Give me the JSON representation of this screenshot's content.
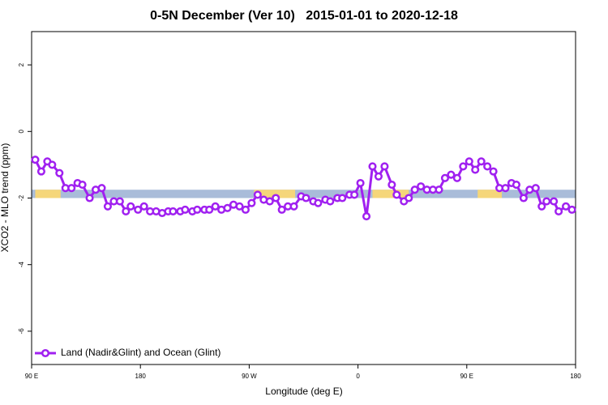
{
  "chart_data": {
    "type": "line",
    "title": "0-5N December (Ver 10)   2015-01-01 to 2020-12-18",
    "xlabel": "Longitude (deg E)",
    "ylabel": "XCO2 - MLO trend (ppm)",
    "xlim": [
      90,
      540
    ],
    "xticks": [
      {
        "value": 90,
        "label": "90 E"
      },
      180,
      {
        "value": 270,
        "label": "90 W"
      },
      {
        "value": 360,
        "label": "0"
      },
      {
        "value": 450,
        "label": "90 E"
      },
      {
        "value": 540,
        "label": "180"
      }
    ],
    "ylim": [
      -7,
      3
    ],
    "yticks": [
      -6,
      -4,
      -2,
      0,
      2
    ],
    "band": {
      "ylim": [
        -2,
        -1.75
      ],
      "color": "#a9bcd9"
    },
    "highlight_spans": [
      [
        93,
        114
      ],
      [
        274,
        308
      ],
      [
        372,
        402
      ],
      [
        459,
        479
      ]
    ],
    "highlight_color": "#f5d67a",
    "legend": "bottom-left",
    "x": [
      93,
      98,
      103,
      107,
      113,
      118,
      123,
      128,
      132,
      138,
      143,
      148,
      153,
      158,
      163,
      168,
      172,
      178,
      183,
      188,
      193,
      198,
      203,
      207,
      213,
      217,
      223,
      227,
      233,
      237,
      242,
      247,
      252,
      257,
      262,
      267,
      272,
      277,
      282,
      287,
      292,
      297,
      302,
      307,
      313,
      317,
      323,
      327,
      333,
      337,
      343,
      347,
      353,
      357,
      362,
      367,
      372,
      377,
      382,
      388,
      392,
      398,
      402,
      407,
      412,
      417,
      422,
      427,
      432,
      437,
      442,
      447,
      452,
      457,
      462,
      467,
      472,
      477,
      482,
      487,
      491,
      497,
      502,
      507,
      512,
      516,
      522,
      526,
      532,
      537
    ],
    "series": [
      {
        "name": "Land (Nadir&Glint) and Ocean (Glint)",
        "color": "#a020f0",
        "values": [
          -0.85,
          -1.2,
          -0.9,
          -1.0,
          -1.25,
          -1.7,
          -1.7,
          -1.55,
          -1.6,
          -2.0,
          -1.75,
          -1.7,
          -2.25,
          -2.1,
          -2.1,
          -2.4,
          -2.25,
          -2.35,
          -2.25,
          -2.4,
          -2.4,
          -2.45,
          -2.4,
          -2.4,
          -2.4,
          -2.35,
          -2.4,
          -2.35,
          -2.35,
          -2.35,
          -2.25,
          -2.35,
          -2.3,
          -2.2,
          -2.25,
          -2.35,
          -2.15,
          -1.9,
          -2.05,
          -2.1,
          -2.0,
          -2.35,
          -2.25,
          -2.25,
          -1.95,
          -2.0,
          -2.1,
          -2.15,
          -2.05,
          -2.1,
          -2.0,
          -2.0,
          -1.9,
          -1.9,
          -1.55,
          -2.55,
          -1.05,
          -1.35,
          -1.05,
          -1.6,
          -1.9,
          -2.1,
          -2.0,
          -1.75,
          -1.65,
          -1.75,
          -1.75,
          -1.75,
          -1.4,
          -1.3,
          -1.4,
          -1.05,
          -0.9,
          -1.15,
          -0.9,
          -1.05,
          -1.2,
          -1.7,
          -1.7,
          -1.55,
          -1.6,
          -2.0,
          -1.75,
          -1.7,
          -2.25,
          -2.1,
          -2.1,
          -2.4,
          -2.25,
          -2.35
        ]
      }
    ]
  }
}
